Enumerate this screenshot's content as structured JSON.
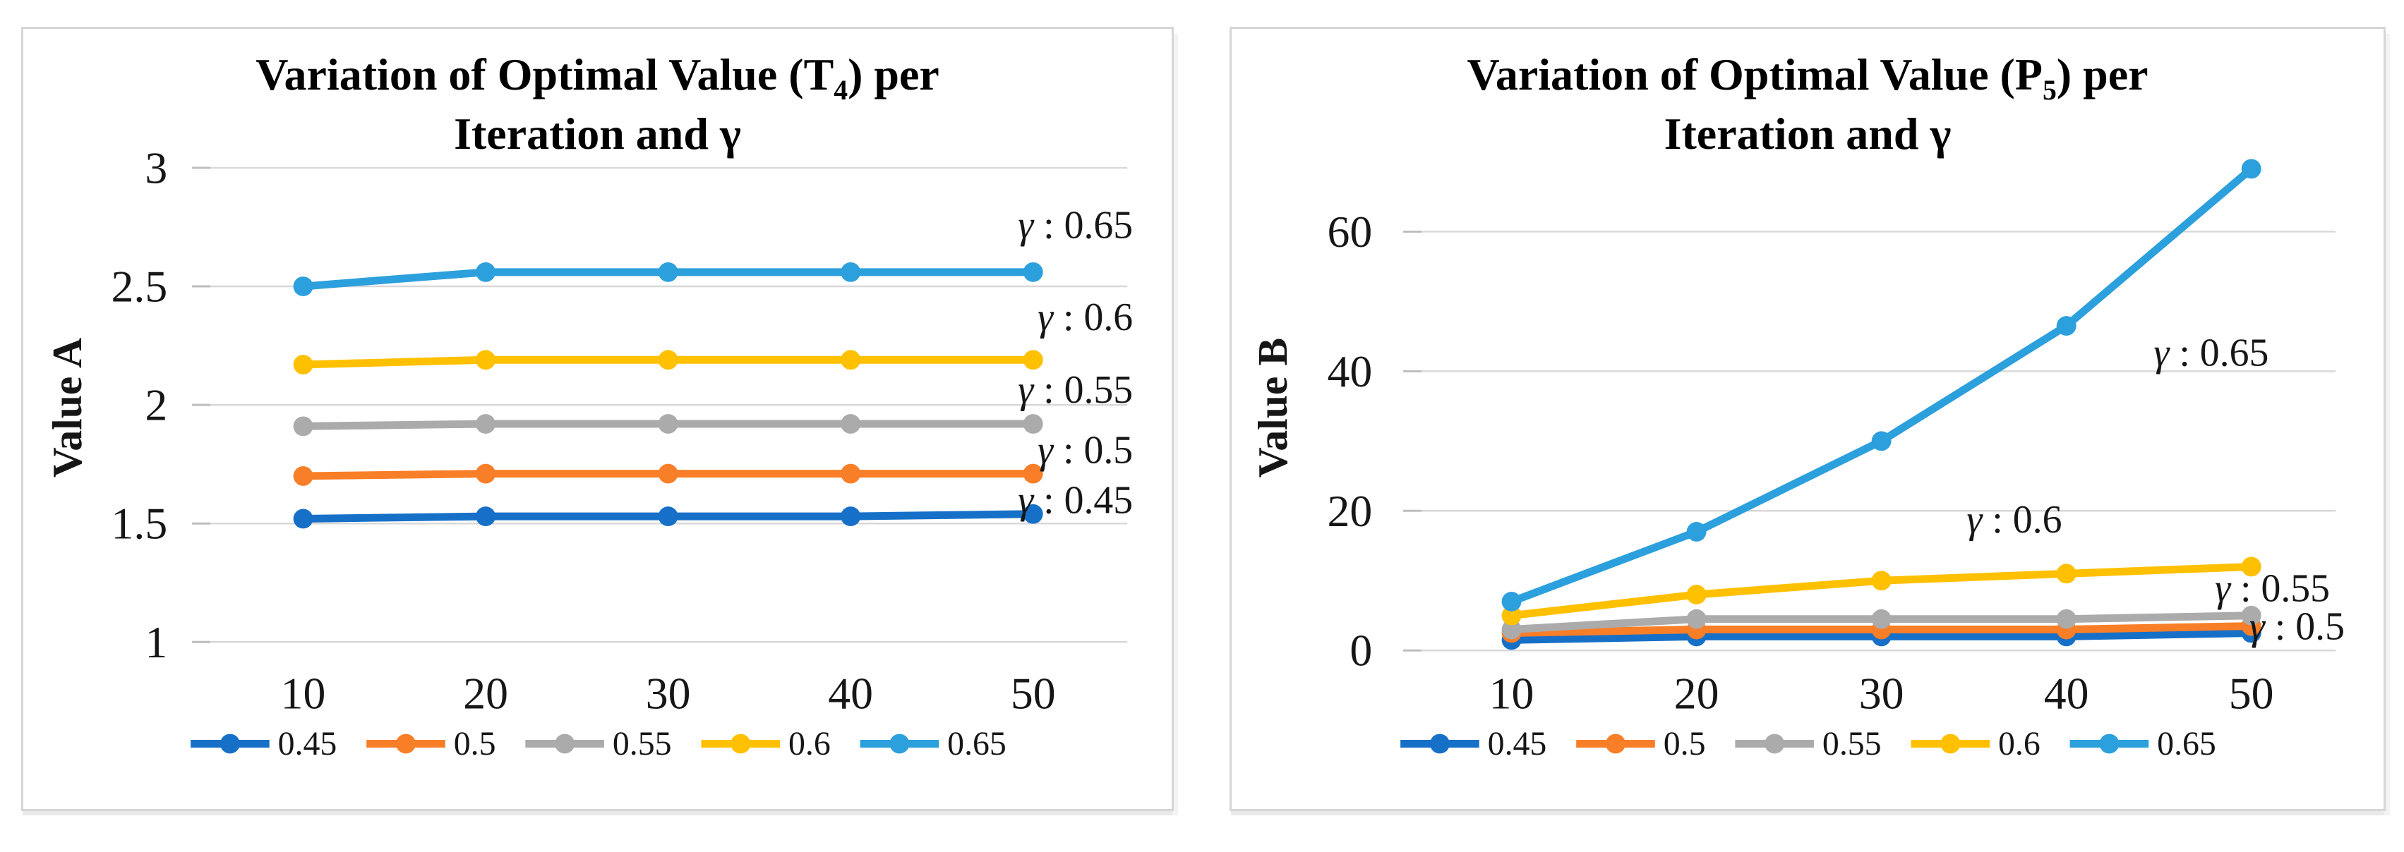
{
  "chart_data": [
    {
      "type": "line",
      "title": {
        "pre": "Variation of Optimal Value (T",
        "sub": "4",
        "post": ") per",
        "line2": "Iteration and γ"
      },
      "ylabel": "Value A",
      "xlabel": "",
      "x_ticks": [
        "10",
        "20",
        "30",
        "40",
        "50"
      ],
      "y_ticks": [
        3,
        2.5,
        2,
        1.5,
        1
      ],
      "ylim": [
        1,
        3
      ],
      "grid": "horizontal",
      "legend_position": "bottom",
      "series": [
        {
          "name": "0.45",
          "color": "#1770C8",
          "values": [
            1.52,
            1.53,
            1.53,
            1.53,
            1.54
          ]
        },
        {
          "name": "0.5",
          "color": "#F97E28",
          "values": [
            1.7,
            1.71,
            1.71,
            1.71,
            1.71
          ]
        },
        {
          "name": "0.55",
          "color": "#ABABAB",
          "values": [
            1.91,
            1.92,
            1.92,
            1.92,
            1.92
          ]
        },
        {
          "name": "0.6",
          "color": "#FFC000",
          "values": [
            2.17,
            2.19,
            2.19,
            2.19,
            2.19
          ]
        },
        {
          "name": "0.65",
          "color": "#2CA0DC",
          "values": [
            2.5,
            2.56,
            2.56,
            2.56,
            2.56
          ]
        }
      ],
      "annotations": [
        {
          "label": "γ : 0.65",
          "x": 1578,
          "y": 280,
          "anchor": "end"
        },
        {
          "label": "γ : 0.6",
          "x": 1578,
          "y": 411,
          "anchor": "end"
        },
        {
          "label": "γ : 0.55",
          "x": 1578,
          "y": 515,
          "anchor": "end"
        },
        {
          "label": "γ : 0.5",
          "x": 1578,
          "y": 601,
          "anchor": "end"
        },
        {
          "label": "γ : 0.45",
          "x": 1578,
          "y": 672,
          "anchor": "end"
        }
      ]
    },
    {
      "type": "line",
      "title": {
        "pre": "Variation of Optimal Value (P",
        "sub": "5",
        "post": ") per",
        "line2": "Iteration and γ"
      },
      "ylabel": "Value B",
      "xlabel": "",
      "x_ticks": [
        "10",
        "20",
        "30",
        "40",
        "50"
      ],
      "y_ticks": [
        60,
        40,
        20,
        0
      ],
      "ylim": [
        0,
        70
      ],
      "grid": "horizontal",
      "legend_position": "bottom",
      "series": [
        {
          "name": "0.45",
          "color": "#1770C8",
          "values": [
            1.5,
            2,
            2,
            2,
            2.5
          ]
        },
        {
          "name": "0.5",
          "color": "#F97E28",
          "values": [
            2.5,
            3,
            3,
            3,
            3.5
          ]
        },
        {
          "name": "0.55",
          "color": "#ABABAB",
          "values": [
            3,
            4.5,
            4.5,
            4.5,
            5
          ]
        },
        {
          "name": "0.6",
          "color": "#FFC000",
          "values": [
            5,
            8,
            10,
            11,
            12
          ]
        },
        {
          "name": "0.65",
          "color": "#2CA0DC",
          "values": [
            7,
            17,
            30,
            46.5,
            69
          ]
        }
      ],
      "annotations": [
        {
          "label": "γ : 0.65",
          "x": 1393,
          "y": 462,
          "anchor": "middle"
        },
        {
          "label": "γ : 0.6",
          "x": 1113,
          "y": 700,
          "anchor": "middle"
        },
        {
          "label": "γ : 0.55",
          "x": 1480,
          "y": 798,
          "anchor": "middle"
        },
        {
          "label": "γ : 0.5",
          "x": 1515,
          "y": 852,
          "anchor": "middle"
        }
      ]
    }
  ]
}
